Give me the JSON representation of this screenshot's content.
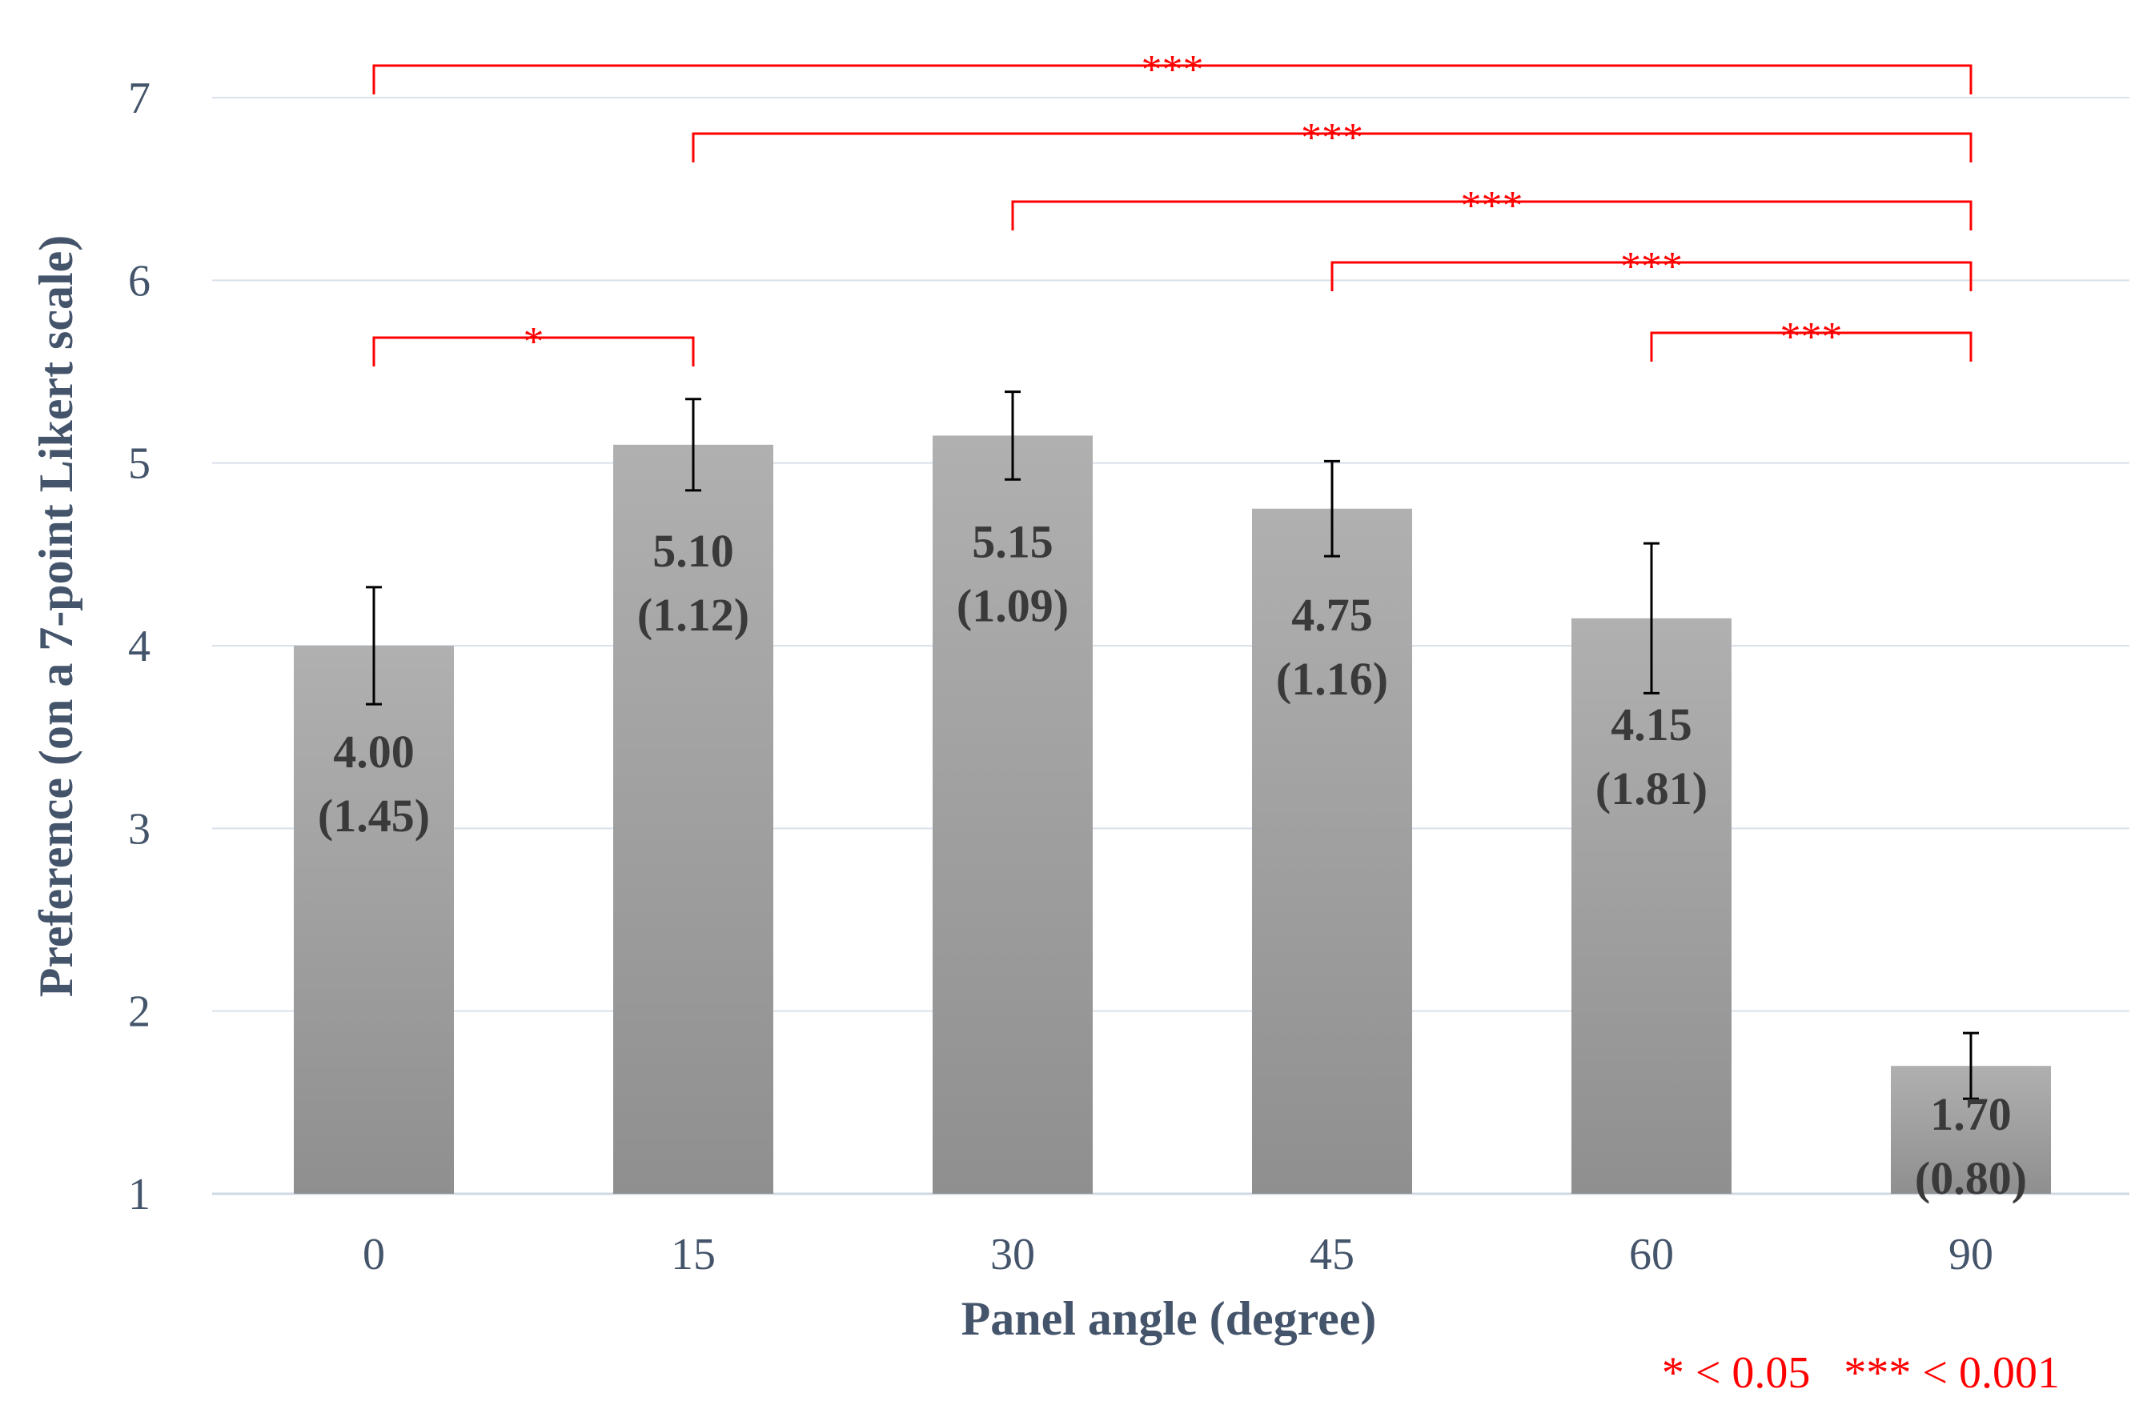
{
  "chart_data": {
    "type": "bar",
    "title": "",
    "xlabel": "Panel angle (degree)",
    "ylabel": "Preference (on a 7-point Likert scale)",
    "categories": [
      "0",
      "15",
      "30",
      "45",
      "60",
      "90"
    ],
    "values": [
      4.0,
      5.1,
      5.15,
      4.75,
      4.15,
      1.7
    ],
    "sd": [
      1.45,
      1.12,
      1.09,
      1.16,
      1.81,
      0.8
    ],
    "error_bars": [
      0.32,
      0.25,
      0.24,
      0.26,
      0.41,
      0.18
    ],
    "value_labels": [
      "4.00",
      "5.10",
      "5.15",
      "4.75",
      "4.15",
      "1.70"
    ],
    "sd_labels": [
      "(1.45)",
      "(1.12)",
      "(1.09)",
      "(1.16)",
      "(1.81)",
      "(0.80)"
    ],
    "ylim": [
      1,
      7
    ],
    "yticks": [
      "1",
      "2",
      "3",
      "4",
      "5",
      "6",
      "7"
    ],
    "grid": true,
    "significance": [
      {
        "from": 0,
        "to": 5,
        "label": "***"
      },
      {
        "from": 1,
        "to": 5,
        "label": "***"
      },
      {
        "from": 2,
        "to": 5,
        "label": "***"
      },
      {
        "from": 3,
        "to": 5,
        "label": "***"
      },
      {
        "from": 0,
        "to": 1,
        "label": "*"
      },
      {
        "from": 4,
        "to": 5,
        "label": "***"
      }
    ],
    "significance_note": "* < 0.05   *** < 0.001",
    "colors": {
      "bar_top": "#b0b0b0",
      "bar_bottom": "#8f8f8f",
      "grid": "#d9e1ea",
      "axis_text": "#44546a",
      "significance": "#ff0000",
      "error_bar": "#000000"
    }
  }
}
